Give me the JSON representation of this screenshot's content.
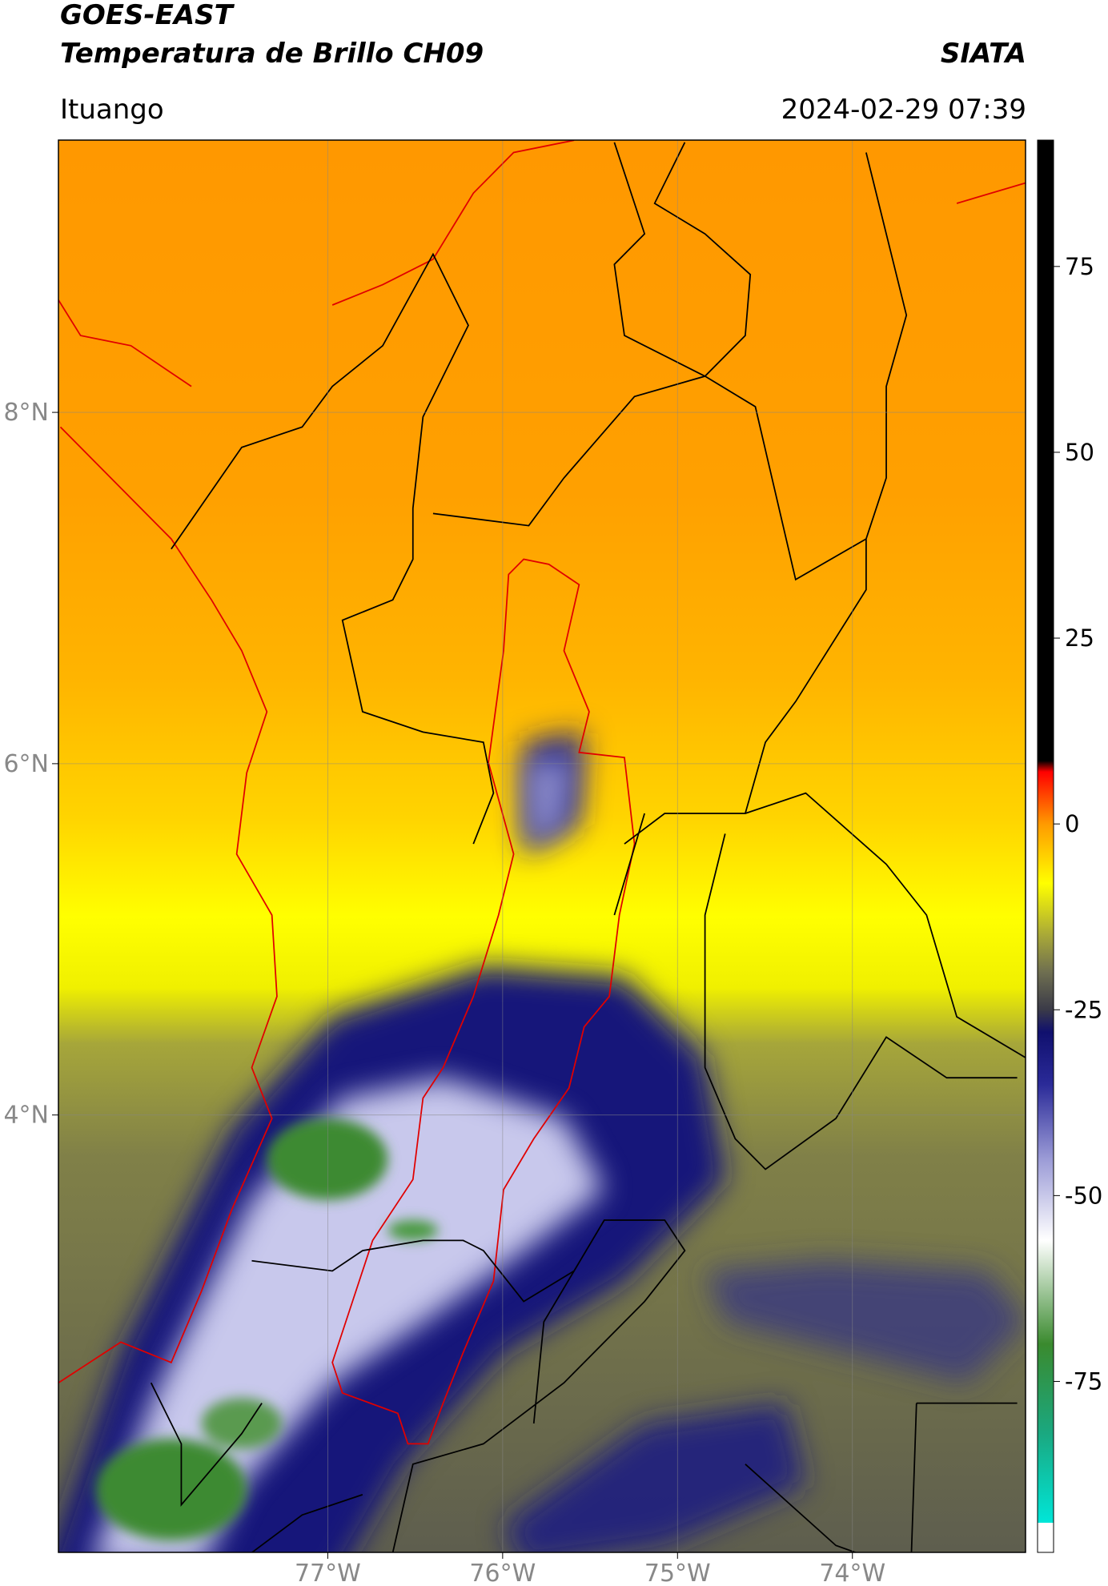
{
  "chart_data": {
    "type": "map",
    "title": "GOES-EAST",
    "subtitle": "Temperatura de Brillo CH09",
    "source": "SIATA",
    "location": "Ituango",
    "datetime": "2024-02-29 07:39",
    "xlim": [
      -78.54,
      -73.01
    ],
    "ylim": [
      1.51,
      9.55
    ],
    "xticks": [
      {
        "value": -77,
        "label": "77°W"
      },
      {
        "value": -76,
        "label": "76°W"
      },
      {
        "value": -75,
        "label": "75°W"
      },
      {
        "value": -74,
        "label": "74°W"
      }
    ],
    "yticks": [
      {
        "value": 8,
        "label": "8°N"
      },
      {
        "value": 6,
        "label": "6°N"
      },
      {
        "value": 4,
        "label": "4°N"
      }
    ],
    "grid": true,
    "colorbar": {
      "lim": [
        -98,
        92
      ],
      "ticks": [
        75,
        50,
        25,
        0,
        -25,
        -50,
        -75
      ],
      "colormap": [
        {
          "value": -98,
          "color": "#ffffff"
        },
        {
          "value": -94,
          "color": "#ffffff"
        },
        {
          "value": -94,
          "color": "#00e6d8"
        },
        {
          "value": -82,
          "color": "#1aa880"
        },
        {
          "value": -70,
          "color": "#3a8a2e"
        },
        {
          "value": -56,
          "color": "#ffffff"
        },
        {
          "value": -45,
          "color": "#9a9ad6"
        },
        {
          "value": -35,
          "color": "#2a2a98"
        },
        {
          "value": -28,
          "color": "#10106e"
        },
        {
          "value": -25,
          "color": "#3a3a48"
        },
        {
          "value": -20,
          "color": "#6e6e50"
        },
        {
          "value": -15,
          "color": "#a8a838"
        },
        {
          "value": -8,
          "color": "#ffff00"
        },
        {
          "value": 0,
          "color": "#ff9a00"
        },
        {
          "value": 7,
          "color": "#ff0000"
        },
        {
          "value": 8.5,
          "color": "#000000"
        },
        {
          "value": 92,
          "color": "#000000"
        }
      ]
    }
  }
}
